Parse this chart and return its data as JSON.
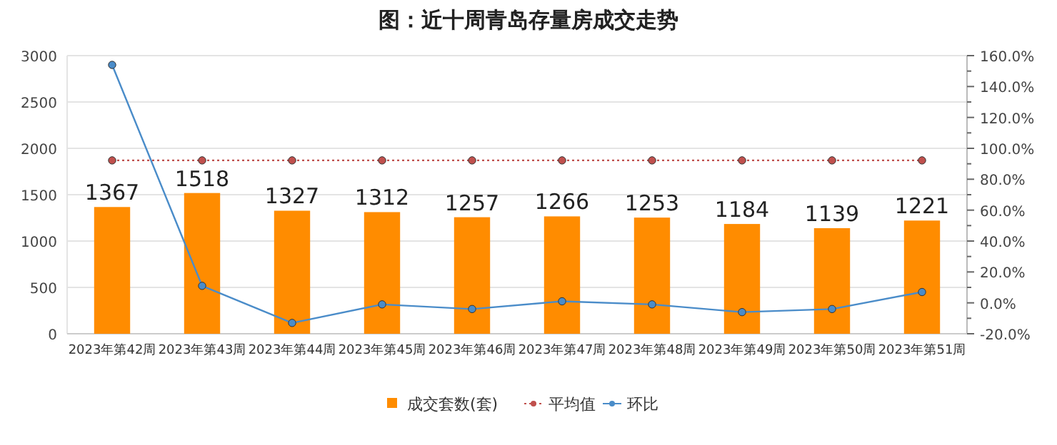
{
  "chart_data": {
    "type": "bar",
    "title": "图：近十周青岛存量房成交走势",
    "categories": [
      "2023年第42周",
      "2023年第43周",
      "2023年第44周",
      "2023年第45周",
      "2023年第46周",
      "2023年第47周",
      "2023年第48周",
      "2023年第49周",
      "2023年第50周",
      "2023年第51周"
    ],
    "series": [
      {
        "name": "成交套数(套)",
        "color": "#ff8c00",
        "values": [
          1367,
          1518,
          1327,
          1312,
          1257,
          1266,
          1253,
          1184,
          1139,
          1221
        ],
        "value_labels": [
          "1367",
          "1518",
          "1327",
          "1312",
          "1257",
          "1266",
          "1253",
          "1184",
          "1139",
          "1221"
        ]
      },
      {
        "name": "平均值",
        "type": "line",
        "color": "#c0504d",
        "marker": "circle",
        "line_style": "dotted",
        "values": [
          1870,
          1870,
          1870,
          1870,
          1870,
          1870,
          1870,
          1870,
          1870,
          1870
        ]
      },
      {
        "name": "环比",
        "type": "line",
        "axis": "y2",
        "color": "#4a8cc9",
        "marker": "circle",
        "line_style": "solid",
        "values": [
          154,
          11,
          -13,
          -1,
          -4,
          1,
          -1,
          -6,
          -4,
          7
        ]
      }
    ],
    "ylim": [
      0,
      3000
    ],
    "yticks": [
      0,
      500,
      1000,
      1500,
      2000,
      2500,
      3000
    ],
    "y2lim": [
      -20,
      160
    ],
    "y2ticks": [
      {
        "value": -20,
        "label": "-20.0%"
      },
      {
        "value": -10,
        "label": null
      },
      {
        "value": 0,
        "label": "0.0%"
      },
      {
        "value": 10,
        "label": null
      },
      {
        "value": 20,
        "label": "20.0%"
      },
      {
        "value": 30,
        "label": null
      },
      {
        "value": 40,
        "label": "40.0%"
      },
      {
        "value": 50,
        "label": null
      },
      {
        "value": 60,
        "label": "60.0%"
      },
      {
        "value": 70,
        "label": null
      },
      {
        "value": 80,
        "label": "80.0%"
      },
      {
        "value": 90,
        "label": null
      },
      {
        "value": 100,
        "label": "100.0%"
      },
      {
        "value": 110,
        "label": null
      },
      {
        "value": 120,
        "label": "120.0%"
      },
      {
        "value": 130,
        "label": null
      },
      {
        "value": 140,
        "label": "140.0%"
      },
      {
        "value": 150,
        "label": null
      },
      {
        "value": 160,
        "label": "160.0%"
      }
    ],
    "grid": "y",
    "legend": "bottom"
  }
}
